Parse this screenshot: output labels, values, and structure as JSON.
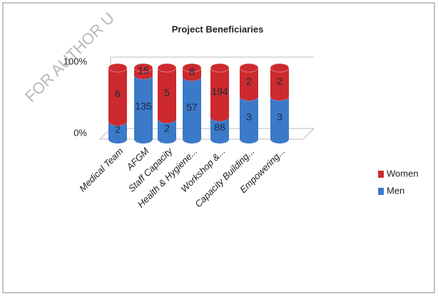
{
  "chart_data": {
    "type": "bar",
    "stack": "percent",
    "title": "Project Beneficiaries",
    "watermark": "FOR AUTHOR U",
    "categories": [
      "Medical Team",
      "AFGM",
      "Staff Capacity",
      "Health & Hygiene...",
      "Workshop &...",
      "Capacity Building...",
      "Empowering..."
    ],
    "series": [
      {
        "name": "Men",
        "color": "#3b79c9",
        "values": [
          2,
          135,
          2,
          57,
          88,
          3,
          3
        ]
      },
      {
        "name": "Women",
        "color": "#cc2a2e",
        "values": [
          6,
          15,
          5,
          8,
          194,
          2,
          2
        ]
      }
    ],
    "ylim": [
      0,
      100
    ],
    "yticks": [
      {
        "value": 0,
        "label": "0%"
      },
      {
        "value": 100,
        "label": "100%"
      }
    ],
    "grid": true,
    "legend": "right"
  }
}
